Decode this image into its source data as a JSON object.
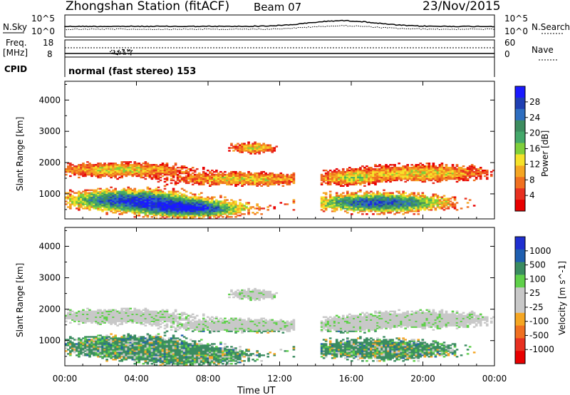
{
  "header": {
    "title": "Zhongshan Station (fitACF)",
    "beam": "Beam 07",
    "date": "23/Nov/2015"
  },
  "noise_panel": {
    "left_label": "N.Sky",
    "right_label": "N.Search",
    "left_ticks": [
      "10^5",
      "10^0"
    ],
    "right_ticks": [
      "10^5",
      "10^0"
    ]
  },
  "freq_panel": {
    "left_label_1": "Freq.",
    "left_label_2": "[MHz]",
    "right_label": "Nave",
    "left_ticks": [
      "18",
      "8"
    ],
    "right_ticks": [
      "60",
      "0"
    ]
  },
  "cpid_panel": {
    "label": "CPID",
    "text": "normal (fast stereo) 153"
  },
  "colors": {
    "power": [
      "#1a1aff",
      "#1f3fb3",
      "#2e6ec0",
      "#3d8c5f",
      "#44a86a",
      "#7fcf3b",
      "#f5e22a",
      "#f5a623",
      "#f07020",
      "#e83020",
      "#e80000"
    ],
    "velocity": [
      "#1f2fd0",
      "#1f5fb0",
      "#3a8c60",
      "#5fd04a",
      "#c8c8c8",
      "#c8c8c8",
      "#f5a623",
      "#f07020",
      "#e83020",
      "#e80000"
    ]
  },
  "chart_data": [
    {
      "type": "heatmap",
      "name": "power",
      "ylabel": "Slant Range [km]",
      "ylim": [
        200,
        4600
      ],
      "y_ticks": [
        1000,
        2000,
        3000,
        4000
      ],
      "xlim": [
        0,
        24
      ],
      "colorbar_label": "Power [dB]",
      "colorbar_ticks": [
        "28",
        "24",
        "20",
        "16",
        "12",
        "8",
        "4"
      ],
      "colorbar_range": [
        0,
        30
      ]
    },
    {
      "type": "heatmap",
      "name": "velocity",
      "ylabel": "Slant Range [km]",
      "ylim": [
        200,
        4600
      ],
      "y_ticks": [
        1000,
        2000,
        3000,
        4000
      ],
      "xlim": [
        0,
        24
      ],
      "colorbar_label": "Velocity [m s^-1]",
      "colorbar_ticks": [
        "1000",
        "500",
        "100",
        "25",
        "-25",
        "-100",
        "-500",
        "-1000"
      ]
    }
  ],
  "x_axis": {
    "label": "Time UT",
    "ticks": [
      "00:00",
      "04:00",
      "08:00",
      "12:00",
      "16:00",
      "20:00",
      "00:00"
    ]
  }
}
